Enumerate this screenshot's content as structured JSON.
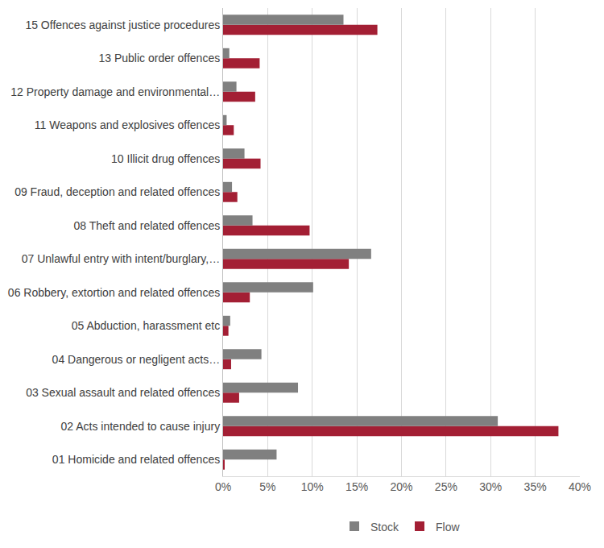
{
  "chart_data": {
    "type": "bar",
    "orientation": "horizontal",
    "categories": [
      "01 Homicide and related offences",
      "02 Acts intended to cause injury",
      "03 Sexual assault and related offences",
      "04 Dangerous or negligent acts…",
      "05 Abduction, harassment etc",
      "06 Robbery, extortion and related offences",
      "07 Unlawful entry with intent/burglary,…",
      "08 Theft and related offences",
      "09 Fraud, deception and related offences",
      "10 Illicit drug offences",
      "11 Weapons and explosives offences",
      "12 Property damage and environmental…",
      "13 Public order offences",
      "15 Offences against justice procedures"
    ],
    "series": [
      {
        "name": "Stock",
        "color": "#808080",
        "values": [
          6.0,
          30.8,
          8.4,
          4.3,
          0.8,
          10.1,
          16.6,
          3.3,
          1.0,
          2.4,
          0.4,
          1.5,
          0.7,
          13.5
        ]
      },
      {
        "name": "Flow",
        "color": "#a31f34",
        "values": [
          0.1,
          37.6,
          1.8,
          0.9,
          0.6,
          3.0,
          14.1,
          9.7,
          1.6,
          4.2,
          1.2,
          3.6,
          4.1,
          17.3
        ]
      }
    ],
    "xlim": [
      0,
      40
    ],
    "xticks": [
      {
        "value": 0,
        "label": "0%"
      },
      {
        "value": 5,
        "label": "5%"
      },
      {
        "value": 10,
        "label": "10%"
      },
      {
        "value": 15,
        "label": "15%"
      },
      {
        "value": 20,
        "label": "20%"
      },
      {
        "value": 25,
        "label": "25%"
      },
      {
        "value": 30,
        "label": "30%"
      },
      {
        "value": 35,
        "label": "35%"
      },
      {
        "value": 40,
        "label": "40%"
      }
    ],
    "grid": true,
    "legend": "bottom"
  }
}
